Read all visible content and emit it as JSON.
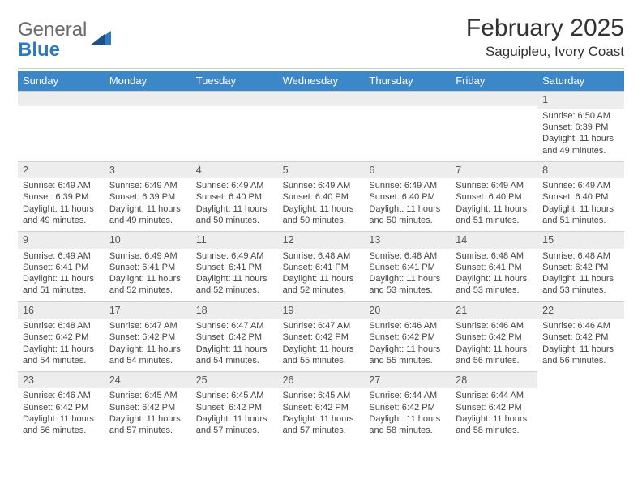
{
  "brand": {
    "word1": "General",
    "word2": "Blue"
  },
  "header": {
    "month_title": "February 2025",
    "location": "Saguipleu, Ivory Coast"
  },
  "colors": {
    "header_bg": "#3c87c7",
    "header_text": "#ffffff",
    "daynum_bg": "#ededed",
    "divider": "#cfcfcf",
    "brand_gray": "#6a6a6a",
    "brand_blue": "#2f78c2"
  },
  "day_names": [
    "Sunday",
    "Monday",
    "Tuesday",
    "Wednesday",
    "Thursday",
    "Friday",
    "Saturday"
  ],
  "weeks": [
    [
      {
        "empty": true
      },
      {
        "empty": true
      },
      {
        "empty": true
      },
      {
        "empty": true
      },
      {
        "empty": true
      },
      {
        "empty": true
      },
      {
        "n": 1,
        "sunrise": "6:50 AM",
        "sunset": "6:39 PM",
        "dl": "11 hours and 49 minutes."
      }
    ],
    [
      {
        "n": 2,
        "sunrise": "6:49 AM",
        "sunset": "6:39 PM",
        "dl": "11 hours and 49 minutes."
      },
      {
        "n": 3,
        "sunrise": "6:49 AM",
        "sunset": "6:39 PM",
        "dl": "11 hours and 49 minutes."
      },
      {
        "n": 4,
        "sunrise": "6:49 AM",
        "sunset": "6:40 PM",
        "dl": "11 hours and 50 minutes."
      },
      {
        "n": 5,
        "sunrise": "6:49 AM",
        "sunset": "6:40 PM",
        "dl": "11 hours and 50 minutes."
      },
      {
        "n": 6,
        "sunrise": "6:49 AM",
        "sunset": "6:40 PM",
        "dl": "11 hours and 50 minutes."
      },
      {
        "n": 7,
        "sunrise": "6:49 AM",
        "sunset": "6:40 PM",
        "dl": "11 hours and 51 minutes."
      },
      {
        "n": 8,
        "sunrise": "6:49 AM",
        "sunset": "6:40 PM",
        "dl": "11 hours and 51 minutes."
      }
    ],
    [
      {
        "n": 9,
        "sunrise": "6:49 AM",
        "sunset": "6:41 PM",
        "dl": "11 hours and 51 minutes."
      },
      {
        "n": 10,
        "sunrise": "6:49 AM",
        "sunset": "6:41 PM",
        "dl": "11 hours and 52 minutes."
      },
      {
        "n": 11,
        "sunrise": "6:49 AM",
        "sunset": "6:41 PM",
        "dl": "11 hours and 52 minutes."
      },
      {
        "n": 12,
        "sunrise": "6:48 AM",
        "sunset": "6:41 PM",
        "dl": "11 hours and 52 minutes."
      },
      {
        "n": 13,
        "sunrise": "6:48 AM",
        "sunset": "6:41 PM",
        "dl": "11 hours and 53 minutes."
      },
      {
        "n": 14,
        "sunrise": "6:48 AM",
        "sunset": "6:41 PM",
        "dl": "11 hours and 53 minutes."
      },
      {
        "n": 15,
        "sunrise": "6:48 AM",
        "sunset": "6:42 PM",
        "dl": "11 hours and 53 minutes."
      }
    ],
    [
      {
        "n": 16,
        "sunrise": "6:48 AM",
        "sunset": "6:42 PM",
        "dl": "11 hours and 54 minutes."
      },
      {
        "n": 17,
        "sunrise": "6:47 AM",
        "sunset": "6:42 PM",
        "dl": "11 hours and 54 minutes."
      },
      {
        "n": 18,
        "sunrise": "6:47 AM",
        "sunset": "6:42 PM",
        "dl": "11 hours and 54 minutes."
      },
      {
        "n": 19,
        "sunrise": "6:47 AM",
        "sunset": "6:42 PM",
        "dl": "11 hours and 55 minutes."
      },
      {
        "n": 20,
        "sunrise": "6:46 AM",
        "sunset": "6:42 PM",
        "dl": "11 hours and 55 minutes."
      },
      {
        "n": 21,
        "sunrise": "6:46 AM",
        "sunset": "6:42 PM",
        "dl": "11 hours and 56 minutes."
      },
      {
        "n": 22,
        "sunrise": "6:46 AM",
        "sunset": "6:42 PM",
        "dl": "11 hours and 56 minutes."
      }
    ],
    [
      {
        "n": 23,
        "sunrise": "6:46 AM",
        "sunset": "6:42 PM",
        "dl": "11 hours and 56 minutes."
      },
      {
        "n": 24,
        "sunrise": "6:45 AM",
        "sunset": "6:42 PM",
        "dl": "11 hours and 57 minutes."
      },
      {
        "n": 25,
        "sunrise": "6:45 AM",
        "sunset": "6:42 PM",
        "dl": "11 hours and 57 minutes."
      },
      {
        "n": 26,
        "sunrise": "6:45 AM",
        "sunset": "6:42 PM",
        "dl": "11 hours and 57 minutes."
      },
      {
        "n": 27,
        "sunrise": "6:44 AM",
        "sunset": "6:42 PM",
        "dl": "11 hours and 58 minutes."
      },
      {
        "n": 28,
        "sunrise": "6:44 AM",
        "sunset": "6:42 PM",
        "dl": "11 hours and 58 minutes."
      },
      {
        "empty": true,
        "noband": true
      }
    ]
  ],
  "labels": {
    "sunrise": "Sunrise:",
    "sunset": "Sunset:",
    "daylight": "Daylight:"
  }
}
